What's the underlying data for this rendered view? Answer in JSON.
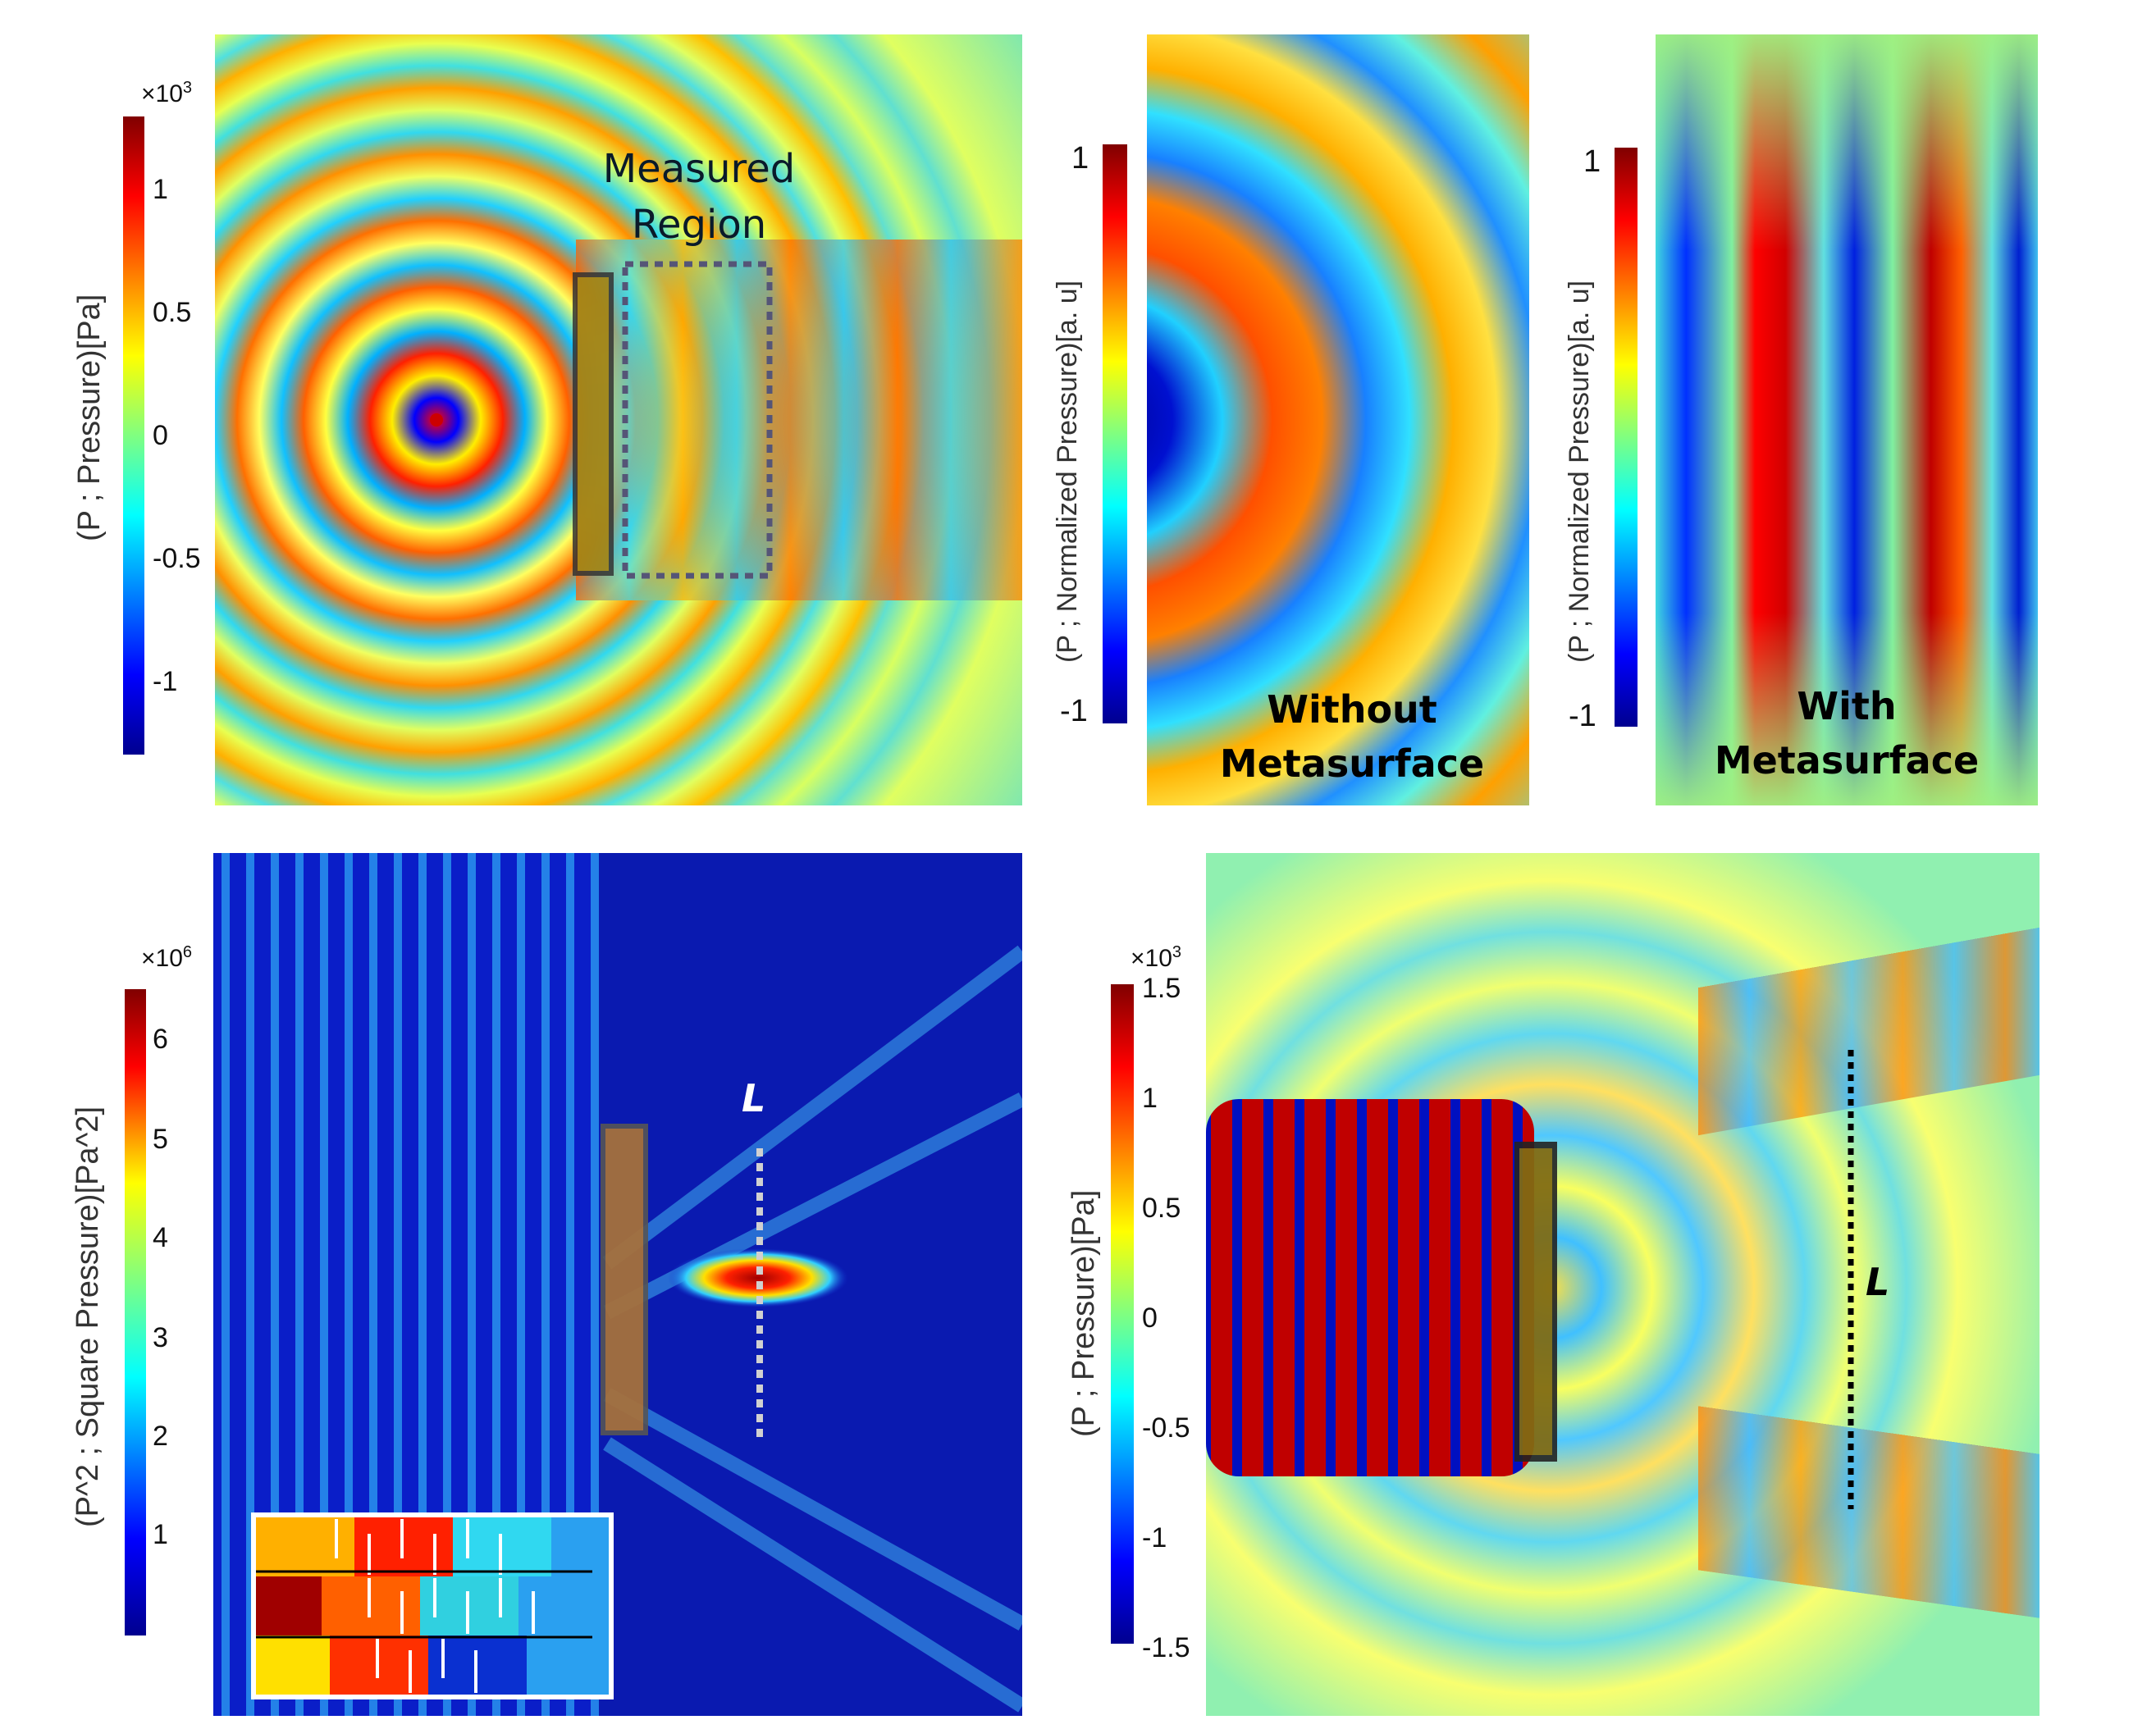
{
  "colors": {
    "jet": [
      "#00008f",
      "#0000ff",
      "#0080ff",
      "#00ffff",
      "#80ff80",
      "#ffff00",
      "#ff8000",
      "#ff0000",
      "#800000"
    ],
    "background_field": "#3de0c8",
    "dotted_box": "#555577",
    "line_L_light": "#d0d0d0",
    "line_L_dark": "#000000"
  },
  "panels": {
    "top_left": {
      "colorbar_multiplier": "×10",
      "colorbar_multiplier_exp": "3",
      "ticks": [
        "1",
        "0.5",
        "0",
        "-0.5",
        "-1"
      ],
      "axis_label": "(P ; Pressure)[Pa]",
      "region_label_line1": "Measured",
      "region_label_line2": "Region"
    },
    "top_middle": {
      "ticks": [
        "1",
        "-1"
      ],
      "axis_label": "(P ; Normalized Pressure)[a. u]",
      "caption_line1": "Without",
      "caption_line2": "Metasurface"
    },
    "top_right": {
      "ticks": [
        "1",
        "-1"
      ],
      "axis_label": "(P ; Normalized Pressure)[a. u]",
      "caption_line1": "With",
      "caption_line2": "Metasurface"
    },
    "bottom_left": {
      "colorbar_multiplier": "×10",
      "colorbar_multiplier_exp": "6",
      "ticks": [
        "6",
        "5",
        "4",
        "3",
        "2",
        "1"
      ],
      "axis_label": "(P^2 ; Square Pressure)[Pa^2]",
      "line_label": "L"
    },
    "bottom_right": {
      "colorbar_multiplier": "×10",
      "colorbar_multiplier_exp": "3",
      "ticks": [
        "1.5",
        "1",
        "0.5",
        "0",
        "-0.5",
        "-1",
        "-1.5"
      ],
      "axis_label": "(P ; Pressure)[Pa]",
      "line_label": "L"
    }
  }
}
